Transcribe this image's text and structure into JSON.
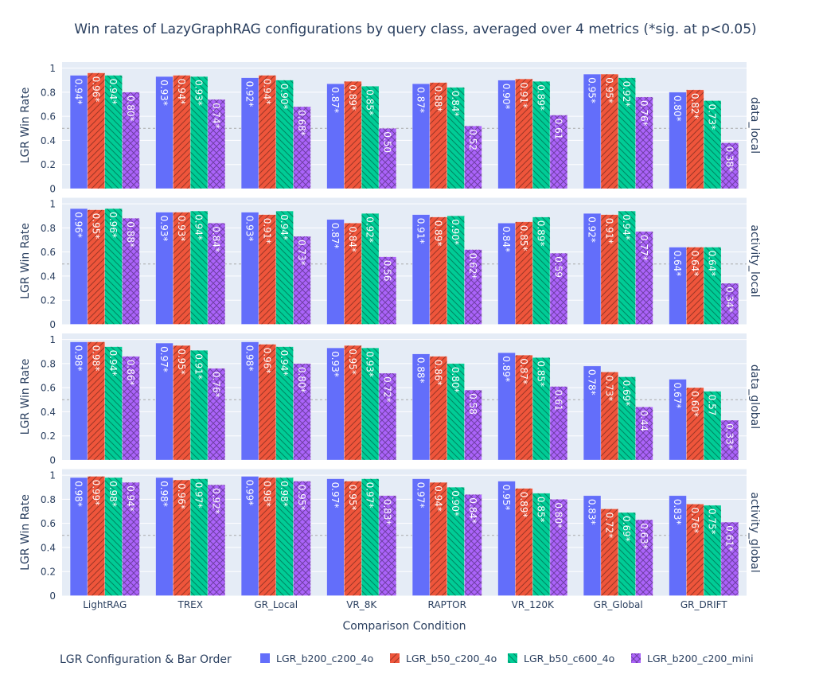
{
  "chart_data": {
    "type": "bar",
    "title": "Win rates of LazyGraphRAG configurations by query class, averaged over 4 metrics (*sig. at p<0.05)",
    "xlabel": "Comparison Condition",
    "ylabel": "LGR Win Rate",
    "ylim": [
      0,
      1.05
    ],
    "yticks": [
      "0",
      "0.2",
      "0.4",
      "0.6",
      "0.8",
      "1"
    ],
    "reference_line": 0.5,
    "grid": true,
    "legend_title": "LGR Configuration & Bar Order",
    "legend_position": "bottom",
    "categories": [
      "LightRAG",
      "TREX",
      "GR_Local",
      "VR_8K",
      "RAPTOR",
      "VR_120K",
      "GR_Global",
      "GR_DRIFT"
    ],
    "series_meta": [
      {
        "name": "LGR_b200_c200_4o",
        "color": "#636efa",
        "pattern": "none"
      },
      {
        "name": "LGR_b50_c200_4o",
        "color": "#ef553b",
        "pattern": "forward-diagonal"
      },
      {
        "name": "LGR_b50_c600_4o",
        "color": "#00cc96",
        "pattern": "back-diagonal"
      },
      {
        "name": "LGR_b200_c200_mini",
        "color": "#ab63fa",
        "pattern": "cross-hatch"
      }
    ],
    "panels": [
      {
        "name": "data_local",
        "series": [
          {
            "values": [
              0.94,
              0.93,
              0.92,
              0.87,
              0.87,
              0.9,
              0.95,
              0.8
            ],
            "labels": [
              "0.94*",
              "0.93*",
              "0.92*",
              "0.87*",
              "0.87*",
              "0.90*",
              "0.95*",
              "0.80*"
            ]
          },
          {
            "values": [
              0.96,
              0.94,
              0.94,
              0.89,
              0.88,
              0.91,
              0.95,
              0.82
            ],
            "labels": [
              "0.96*",
              "0.94*",
              "0.94*",
              "0.89*",
              "0.88*",
              "0.91*",
              "0.95*",
              "0.82*"
            ]
          },
          {
            "values": [
              0.94,
              0.93,
              0.9,
              0.85,
              0.84,
              0.89,
              0.92,
              0.73
            ],
            "labels": [
              "0.94*",
              "0.93*",
              "0.90*",
              "0.85*",
              "0.84*",
              "0.89*",
              "0.92*",
              "0.73*"
            ]
          },
          {
            "values": [
              0.8,
              0.74,
              0.68,
              0.5,
              0.52,
              0.61,
              0.76,
              0.38
            ],
            "labels": [
              "0.80*",
              "0.74*",
              "0.68*",
              "0.50",
              "0.52",
              "0.61",
              "0.76*",
              "0.38*"
            ]
          }
        ]
      },
      {
        "name": "activity_local",
        "series": [
          {
            "values": [
              0.96,
              0.93,
              0.93,
              0.87,
              0.91,
              0.84,
              0.92,
              0.64
            ],
            "labels": [
              "0.96*",
              "0.93*",
              "0.93*",
              "0.87*",
              "0.91*",
              "0.84*",
              "0.92*",
              "0.64*"
            ]
          },
          {
            "values": [
              0.95,
              0.93,
              0.91,
              0.84,
              0.89,
              0.85,
              0.91,
              0.64
            ],
            "labels": [
              "0.95*",
              "0.93*",
              "0.91*",
              "0.84*",
              "0.89*",
              "0.85*",
              "0.91*",
              "0.64*"
            ]
          },
          {
            "values": [
              0.96,
              0.94,
              0.94,
              0.92,
              0.9,
              0.89,
              0.94,
              0.64
            ],
            "labels": [
              "0.96*",
              "0.94*",
              "0.94*",
              "0.92*",
              "0.90*",
              "0.89*",
              "0.94*",
              "0.64*"
            ]
          },
          {
            "values": [
              0.88,
              0.84,
              0.73,
              0.56,
              0.62,
              0.59,
              0.77,
              0.34
            ],
            "labels": [
              "0.88*",
              "0.84*",
              "0.73*",
              "0.56",
              "0.62*",
              "0.59",
              "0.77*",
              "0.34*"
            ]
          }
        ]
      },
      {
        "name": "data_global",
        "series": [
          {
            "values": [
              0.98,
              0.97,
              0.98,
              0.93,
              0.88,
              0.89,
              0.78,
              0.67
            ],
            "labels": [
              "0.98*",
              "0.97*",
              "0.98*",
              "0.93*",
              "0.88*",
              "0.89*",
              "0.78*",
              "0.67*"
            ]
          },
          {
            "values": [
              0.98,
              0.95,
              0.96,
              0.95,
              0.86,
              0.87,
              0.73,
              0.6
            ],
            "labels": [
              "0.98*",
              "0.95*",
              "0.96*",
              "0.95*",
              "0.86*",
              "0.87*",
              "0.73*",
              "0.60*"
            ]
          },
          {
            "values": [
              0.94,
              0.91,
              0.94,
              0.93,
              0.8,
              0.85,
              0.69,
              0.57
            ],
            "labels": [
              "0.94*",
              "0.91*",
              "0.94*",
              "0.93*",
              "0.80*",
              "0.85*",
              "0.69*",
              "0.57"
            ]
          },
          {
            "values": [
              0.86,
              0.76,
              0.8,
              0.72,
              0.58,
              0.61,
              0.44,
              0.33
            ],
            "labels": [
              "0.86*",
              "0.76*",
              "0.80*",
              "0.72*",
              "0.58",
              "0.61",
              "0.44",
              "0.33*"
            ]
          }
        ]
      },
      {
        "name": "activity_global",
        "series": [
          {
            "values": [
              0.98,
              0.98,
              0.99,
              0.97,
              0.97,
              0.95,
              0.83,
              0.83
            ],
            "labels": [
              "0.98*",
              "0.98*",
              "0.99*",
              "0.97*",
              "0.97*",
              "0.95*",
              "0.83*",
              "0.83*"
            ]
          },
          {
            "values": [
              0.99,
              0.96,
              0.98,
              0.95,
              0.94,
              0.89,
              0.72,
              0.76
            ],
            "labels": [
              "0.99*",
              "0.96*",
              "0.98*",
              "0.95*",
              "0.94*",
              "0.89*",
              "0.72*",
              "0.76*"
            ]
          },
          {
            "values": [
              0.98,
              0.97,
              0.98,
              0.97,
              0.9,
              0.85,
              0.69,
              0.75
            ],
            "labels": [
              "0.98*",
              "0.97*",
              "0.98*",
              "0.97*",
              "0.90*",
              "0.85*",
              "0.69*",
              "0.75*"
            ]
          },
          {
            "values": [
              0.94,
              0.92,
              0.95,
              0.83,
              0.84,
              0.8,
              0.63,
              0.61
            ],
            "labels": [
              "0.94*",
              "0.92*",
              "0.95*",
              "0.83*",
              "0.84*",
              "0.80*",
              "0.63*",
              "0.61*"
            ]
          }
        ]
      }
    ]
  }
}
